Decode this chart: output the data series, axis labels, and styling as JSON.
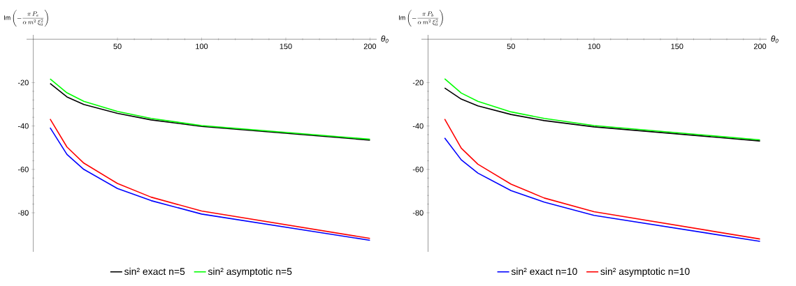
{
  "chart_data": [
    {
      "type": "line",
      "xlabel": "θ$_{0}$",
      "ylabel": "\\mathrm{Im}\\left(-\\frac{\\pi\\, P_e}{\\alpha\\, m^2\\, \\xi_0^2}\\right)",
      "x": [
        10,
        20,
        30,
        50,
        70,
        100,
        200
      ],
      "xlim": [
        -4,
        204
      ],
      "ylim": [
        -98,
        2
      ],
      "xticks": [
        50,
        100,
        150,
        200
      ],
      "yticks": [
        -80,
        -60,
        -40,
        -20
      ],
      "legend": "bottom",
      "series": [
        {
          "name": "sin² exact n=5",
          "color": "#000000",
          "values": [
            -20.4,
            -26.6,
            -30.1,
            -34.2,
            -37.2,
            -40.2,
            -46.5
          ]
        },
        {
          "name": "sin² asymptotic n=5",
          "color": "#00ff00",
          "values": [
            -18.3,
            -24.7,
            -28.6,
            -33.3,
            -36.5,
            -39.8,
            -46.1
          ]
        },
        {
          "color": "#0000ff",
          "values": [
            -40.8,
            -53.1,
            -60.0,
            -68.8,
            -74.4,
            -80.6,
            -92.7
          ]
        },
        {
          "color": "#ff0000",
          "values": [
            -36.8,
            -49.7,
            -57.1,
            -66.5,
            -72.8,
            -79.2,
            -91.8
          ]
        }
      ]
    },
    {
      "type": "line",
      "xlabel": "θ$_{0}$",
      "ylabel": "\\mathrm{Im}\\left(-\\frac{\\pi\\, P_b}{\\alpha\\, m^2\\, \\xi_0^2}\\right)",
      "x": [
        10,
        20,
        30,
        50,
        70,
        100,
        200
      ],
      "xlim": [
        -4,
        204
      ],
      "ylim": [
        -98,
        2
      ],
      "xticks": [
        50,
        100,
        150,
        200
      ],
      "yticks": [
        -80,
        -60,
        -40,
        -20
      ],
      "legend": "bottom",
      "series": [
        {
          "color": "#000000",
          "values": [
            -22.5,
            -27.6,
            -30.7,
            -34.7,
            -37.5,
            -40.4,
            -46.9
          ]
        },
        {
          "color": "#00ff00",
          "values": [
            -18.2,
            -24.8,
            -28.6,
            -33.5,
            -36.5,
            -39.8,
            -46.4
          ]
        },
        {
          "name": "sin² exact n=10",
          "color": "#0000ff",
          "values": [
            -45.5,
            -55.6,
            -61.7,
            -69.8,
            -75.1,
            -81.2,
            -93.2
          ]
        },
        {
          "name": "sin² asymptotic n=10",
          "color": "#ff0000",
          "values": [
            -36.8,
            -50.2,
            -57.6,
            -66.8,
            -73.2,
            -79.5,
            -92.1
          ]
        }
      ]
    }
  ]
}
